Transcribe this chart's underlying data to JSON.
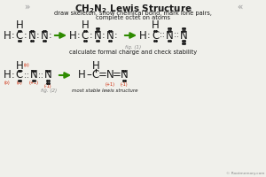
{
  "title_plain": " CH₂N₂ Lewis Structure ",
  "subtitle1": "draw skeleton, show chemical bond, mark lone pairs,",
  "subtitle2": "complete octet on atoms",
  "arrow_color": "#2e8b00",
  "bg_color": "#f0f0eb",
  "fig1_label": "fig. (1)",
  "fig2_label": "fig. (2)",
  "calc_text": "calculate formal charge and check stability",
  "most_stable_text": "most stable lewis structure",
  "copyright": "© Rootmemory.com",
  "chevron_color": "#aaaaaa",
  "black": "#1a1a1a",
  "red": "#cc2200",
  "gray": "#888888"
}
